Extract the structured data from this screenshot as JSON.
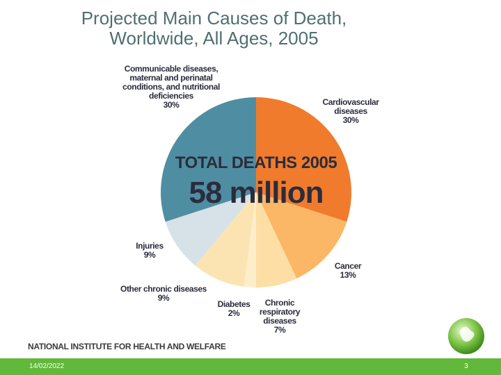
{
  "chart_data": {
    "type": "pie",
    "title": "Projected Main Causes of Death, Worldwide, All Ages, 2005",
    "center_title": "TOTAL DEATHS 2005",
    "center_value": "58 million",
    "categories": [
      "Cardiovascular diseases",
      "Cancer",
      "Chronic respiratory diseases",
      "Diabetes",
      "Other chronic diseases",
      "Injuries",
      "Communicable diseases, maternal and perinatal conditions, and nutritional deficiencies"
    ],
    "values": [
      30,
      13,
      7,
      2,
      9,
      9,
      30
    ],
    "value_labels": [
      "30%",
      "13%",
      "7%",
      "2%",
      "9%",
      "9%",
      "30%"
    ],
    "colors": [
      "#f07b2c",
      "#fbb766",
      "#fddfa6",
      "#fdeecb",
      "#fce4b2",
      "#d6e2e8",
      "#4f8ea2"
    ]
  },
  "footer": {
    "organization": "NATIONAL INSTITUTE FOR HEALTH AND WELFARE",
    "date": "14/02/2022",
    "page": "3"
  }
}
